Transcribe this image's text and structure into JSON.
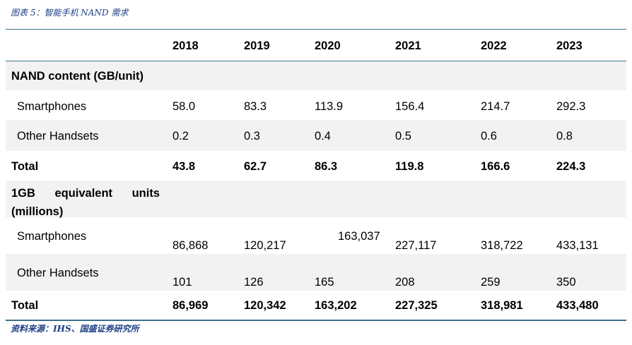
{
  "caption": "图表 5：智能手机 NAND 需求",
  "source": "资料来源：IHS、国盛证券研究所",
  "years": [
    "2018",
    "2019",
    "2020",
    "2021",
    "2022",
    "2023"
  ],
  "section1": {
    "title": "NAND content (GB/unit)",
    "rows": [
      {
        "label": "Smartphones",
        "values": [
          "58.0",
          "83.3",
          "113.9",
          "156.4",
          "214.7",
          "292.3"
        ]
      },
      {
        "label": "Other Handsets",
        "values": [
          "0.2",
          "0.3",
          "0.4",
          "0.5",
          "0.6",
          "0.8"
        ]
      }
    ],
    "total": {
      "label": "Total",
      "values": [
        "43.8",
        "62.7",
        "86.3",
        "119.8",
        "166.6",
        "224.3"
      ]
    }
  },
  "section2": {
    "title_line1": "1GB equivalent units",
    "title_line2": "(millions)",
    "rows": [
      {
        "label": "Smartphones",
        "values": [
          "86,868",
          "120,217",
          "163,037",
          "227,117",
          "318,722",
          "433,131"
        ]
      },
      {
        "label": "Other Handsets",
        "values": [
          "101",
          "126",
          "165",
          "208",
          "259",
          "350"
        ]
      }
    ],
    "total": {
      "label": "Total",
      "values": [
        "86,969",
        "120,342",
        "163,202",
        "227,325",
        "318,981",
        "433,480"
      ]
    }
  }
}
